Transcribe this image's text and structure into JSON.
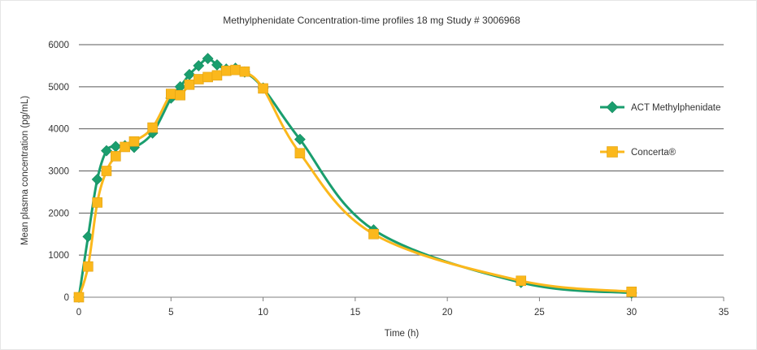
{
  "colors": {
    "act": "#1a9e6e",
    "concerta": "#fbb81c",
    "grid": "#595959",
    "text": "#333333"
  },
  "chart_data": {
    "type": "line",
    "title": "Methylphenidate Concentration-time profiles 18 mg Study # 3006968",
    "xlabel": "Time (h)",
    "ylabel": "Mean plasma concentration  (pg/mL)",
    "xlim": [
      0,
      35
    ],
    "ylim": [
      0,
      6000
    ],
    "xticks": [
      0,
      5,
      10,
      15,
      20,
      25,
      30,
      35
    ],
    "yticks": [
      0,
      1000,
      2000,
      3000,
      4000,
      5000,
      6000
    ],
    "grid": true,
    "legend_position": "right",
    "series": [
      {
        "name": "ACT Methylphenidate",
        "marker": "diamond",
        "color": "#1a9e6e",
        "points": [
          [
            0,
            0
          ],
          [
            0.5,
            1440
          ],
          [
            1,
            2800
          ],
          [
            1.5,
            3480
          ],
          [
            2,
            3580
          ],
          [
            2.5,
            3600
          ],
          [
            3,
            3560
          ],
          [
            4,
            3900
          ],
          [
            5,
            4730
          ],
          [
            5.5,
            5000
          ],
          [
            6,
            5290
          ],
          [
            6.5,
            5500
          ],
          [
            7,
            5670
          ],
          [
            7.5,
            5520
          ],
          [
            8,
            5420
          ],
          [
            8.5,
            5440
          ],
          [
            9,
            5350
          ],
          [
            10,
            4970
          ],
          [
            12,
            3750
          ],
          [
            16,
            1600
          ],
          [
            24,
            350
          ],
          [
            30,
            100
          ]
        ]
      },
      {
        "name": "Concerta®",
        "marker": "square",
        "color": "#fbb81c",
        "points": [
          [
            0,
            0
          ],
          [
            0.5,
            730
          ],
          [
            1,
            2250
          ],
          [
            1.5,
            3000
          ],
          [
            2,
            3350
          ],
          [
            2.5,
            3570
          ],
          [
            3,
            3700
          ],
          [
            4,
            4030
          ],
          [
            5,
            4830
          ],
          [
            5.5,
            4800
          ],
          [
            6,
            5050
          ],
          [
            6.5,
            5180
          ],
          [
            7,
            5230
          ],
          [
            7.5,
            5270
          ],
          [
            8,
            5380
          ],
          [
            8.5,
            5400
          ],
          [
            9,
            5360
          ],
          [
            10,
            4960
          ],
          [
            12,
            3420
          ],
          [
            16,
            1500
          ],
          [
            24,
            390
          ],
          [
            30,
            130
          ]
        ]
      }
    ]
  }
}
